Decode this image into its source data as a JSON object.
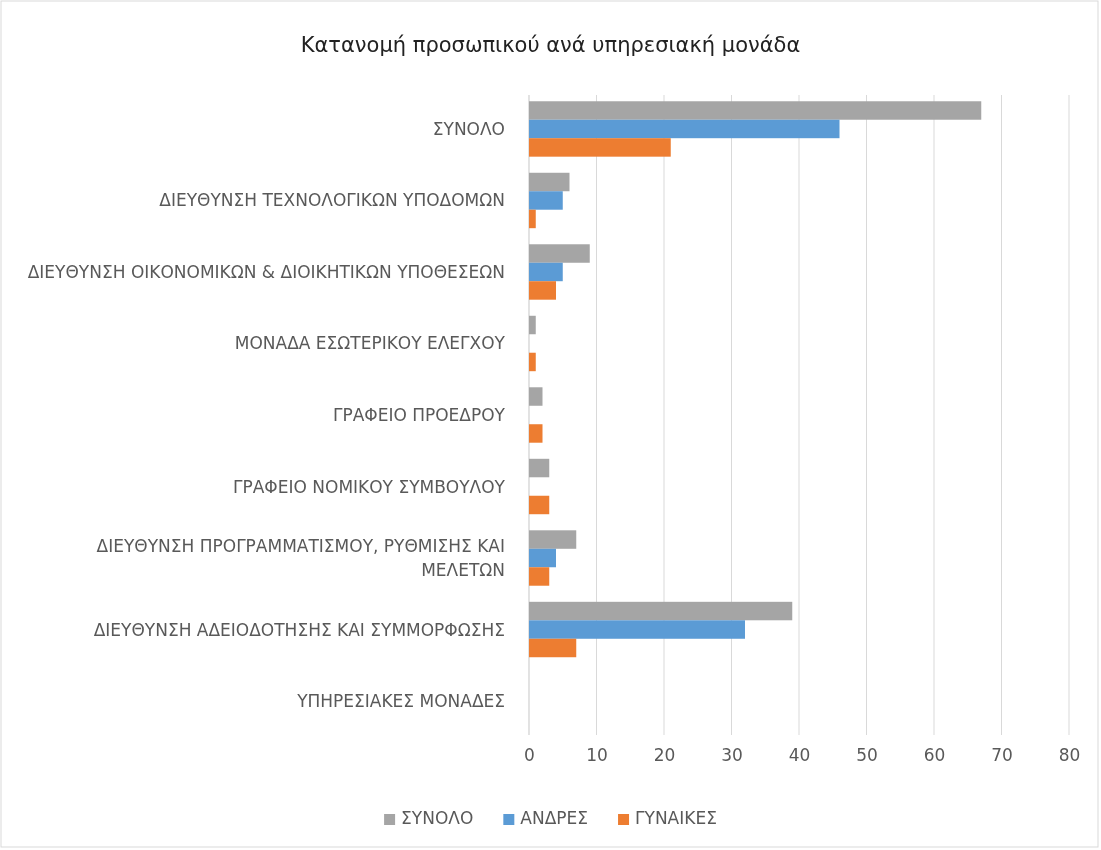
{
  "chart_data": {
    "type": "bar",
    "orientation": "horizontal",
    "title": "Κατανομή προσωπικού ανά υπηρεσιακή μονάδα",
    "categories": [
      "ΣΥΝΟΛΟ",
      "ΔΙΕΥΘΥΝΣΗ ΤΕΧΝΟΛΟΓΙΚΩΝ ΥΠΟΔΟΜΩΝ",
      "ΔΙΕΥΘΥΝΣΗ ΟΙΚΟΝΟΜΙΚΩΝ & ΔΙΟΙΚΗΤΙΚΩΝ ΥΠΟΘΕΣΕΩΝ",
      "ΜΟΝΑΔΑ ΕΣΩΤΕΡΙΚΟΥ ΕΛΕΓΧΟΥ",
      "ΓΡΑΦΕΙΟ ΠΡΟΕΔΡΟΥ",
      "ΓΡΑΦΕΙΟ ΝΟΜΙΚΟΥ ΣΥΜΒΟΥΛΟΥ",
      "ΔΙΕΥΘΥΝΣΗ ΠΡΟΓΡΑΜΜΑΤΙΣΜΟΥ, ΡΥΘΜΙΣΗΣ ΚΑΙ ΜΕΛΕΤΩΝ",
      "ΔΙΕΥΘΥΝΣΗ ΑΔΕΙΟΔΟΤΗΣΗΣ ΚΑΙ ΣΥΜΜΟΡΦΩΣΗΣ",
      "ΥΠΗΡΕΣΙΑΚΕΣ ΜΟΝΑΔΕΣ"
    ],
    "series": [
      {
        "name": "ΣΥΝΟΛΟ",
        "color": "#a5a5a5",
        "values": [
          67,
          6,
          9,
          1,
          2,
          3,
          7,
          39,
          null
        ]
      },
      {
        "name": "ΑΝΔΡΕΣ",
        "color": "#5b9bd5",
        "values": [
          46,
          5,
          5,
          0,
          0,
          0,
          4,
          32,
          null
        ]
      },
      {
        "name": "ΓΥΝΑΙΚΕΣ",
        "color": "#ed7d31",
        "values": [
          21,
          1,
          4,
          1,
          2,
          3,
          3,
          7,
          null
        ]
      }
    ],
    "xlim": [
      0,
      80
    ],
    "xticks": [
      0,
      10,
      20,
      30,
      40,
      50,
      60,
      70,
      80
    ],
    "grid": "x",
    "legend": "bottom"
  }
}
